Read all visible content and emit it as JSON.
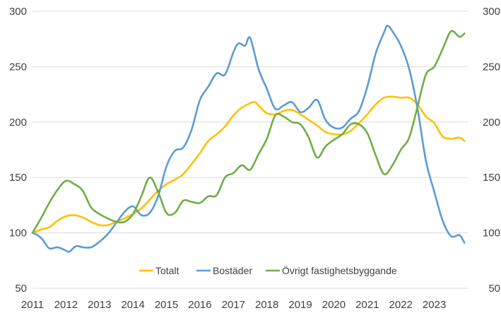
{
  "chart_data": {
    "type": "line",
    "title": "",
    "xlabel": "",
    "ylabel": "",
    "ylim": [
      50,
      300
    ],
    "y_ticks": [
      "300",
      "250",
      "200",
      "150",
      "100",
      "50"
    ],
    "y_ticks_right": [
      "300",
      "250",
      "200",
      "150",
      "100",
      "50"
    ],
    "x_ticks": [
      "2011",
      "2012",
      "2013",
      "2014",
      "2015",
      "2016",
      "2017",
      "2018",
      "2019",
      "2020",
      "2021",
      "2022",
      "2023"
    ],
    "x_range": [
      2011.0,
      2024.0
    ],
    "grid": "horizontal",
    "legend_position": "bottom-inside",
    "series": [
      {
        "name": "Totalt",
        "color": "#FFC000",
        "points": [
          [
            2011.0,
            100
          ],
          [
            2011.25,
            103
          ],
          [
            2011.5,
            105
          ],
          [
            2011.75,
            111
          ],
          [
            2012.0,
            115
          ],
          [
            2012.25,
            116
          ],
          [
            2012.5,
            114
          ],
          [
            2012.75,
            110
          ],
          [
            2013.0,
            107
          ],
          [
            2013.25,
            107
          ],
          [
            2013.5,
            110
          ],
          [
            2013.75,
            113
          ],
          [
            2014.0,
            117
          ],
          [
            2014.25,
            122
          ],
          [
            2014.5,
            130
          ],
          [
            2014.75,
            138
          ],
          [
            2015.0,
            144
          ],
          [
            2015.25,
            148
          ],
          [
            2015.5,
            153
          ],
          [
            2015.75,
            162
          ],
          [
            2016.0,
            172
          ],
          [
            2016.25,
            183
          ],
          [
            2016.5,
            189
          ],
          [
            2016.75,
            196
          ],
          [
            2017.0,
            206
          ],
          [
            2017.25,
            213
          ],
          [
            2017.5,
            217
          ],
          [
            2017.65,
            218
          ],
          [
            2017.75,
            215
          ],
          [
            2018.0,
            208
          ],
          [
            2018.25,
            207
          ],
          [
            2018.5,
            210
          ],
          [
            2018.75,
            211
          ],
          [
            2019.0,
            207
          ],
          [
            2019.25,
            202
          ],
          [
            2019.5,
            197
          ],
          [
            2019.75,
            191
          ],
          [
            2020.0,
            189
          ],
          [
            2020.25,
            189
          ],
          [
            2020.5,
            192
          ],
          [
            2020.75,
            199
          ],
          [
            2021.0,
            207
          ],
          [
            2021.25,
            216
          ],
          [
            2021.5,
            222
          ],
          [
            2021.75,
            223
          ],
          [
            2022.0,
            222
          ],
          [
            2022.25,
            222
          ],
          [
            2022.5,
            216
          ],
          [
            2022.75,
            205
          ],
          [
            2023.0,
            199
          ],
          [
            2023.25,
            187
          ],
          [
            2023.5,
            185
          ],
          [
            2023.75,
            186
          ],
          [
            2023.9,
            183
          ]
        ]
      },
      {
        "name": "Bostäder",
        "color": "#5B9BD5",
        "points": [
          [
            2011.0,
            100
          ],
          [
            2011.15,
            98
          ],
          [
            2011.3,
            94
          ],
          [
            2011.5,
            86
          ],
          [
            2011.75,
            87
          ],
          [
            2012.0,
            84
          ],
          [
            2012.1,
            83
          ],
          [
            2012.3,
            88
          ],
          [
            2012.5,
            87
          ],
          [
            2012.75,
            87
          ],
          [
            2013.0,
            92
          ],
          [
            2013.25,
            99
          ],
          [
            2013.5,
            109
          ],
          [
            2013.75,
            119
          ],
          [
            2014.0,
            124
          ],
          [
            2014.25,
            116
          ],
          [
            2014.5,
            118
          ],
          [
            2014.75,
            133
          ],
          [
            2015.0,
            160
          ],
          [
            2015.25,
            174
          ],
          [
            2015.5,
            177
          ],
          [
            2015.75,
            193
          ],
          [
            2016.0,
            220
          ],
          [
            2016.25,
            232
          ],
          [
            2016.5,
            244
          ],
          [
            2016.75,
            243
          ],
          [
            2017.0,
            263
          ],
          [
            2017.15,
            271
          ],
          [
            2017.35,
            269
          ],
          [
            2017.5,
            276
          ],
          [
            2017.75,
            248
          ],
          [
            2018.0,
            230
          ],
          [
            2018.25,
            212
          ],
          [
            2018.5,
            215
          ],
          [
            2018.75,
            218
          ],
          [
            2019.0,
            209
          ],
          [
            2019.25,
            213
          ],
          [
            2019.5,
            220
          ],
          [
            2019.75,
            202
          ],
          [
            2020.0,
            195
          ],
          [
            2020.25,
            195
          ],
          [
            2020.5,
            203
          ],
          [
            2020.75,
            210
          ],
          [
            2021.0,
            232
          ],
          [
            2021.25,
            262
          ],
          [
            2021.5,
            281
          ],
          [
            2021.6,
            287
          ],
          [
            2021.75,
            282
          ],
          [
            2022.0,
            269
          ],
          [
            2022.25,
            248
          ],
          [
            2022.5,
            212
          ],
          [
            2022.75,
            165
          ],
          [
            2023.0,
            137
          ],
          [
            2023.25,
            111
          ],
          [
            2023.5,
            97
          ],
          [
            2023.75,
            98
          ],
          [
            2023.9,
            91
          ]
        ]
      },
      {
        "name": "Övrigt fastighetsbyggande",
        "color": "#70AD47",
        "points": [
          [
            2011.0,
            100
          ],
          [
            2011.25,
            113
          ],
          [
            2011.5,
            127
          ],
          [
            2011.75,
            139
          ],
          [
            2012.0,
            147
          ],
          [
            2012.25,
            144
          ],
          [
            2012.5,
            138
          ],
          [
            2012.75,
            123
          ],
          [
            2013.0,
            117
          ],
          [
            2013.25,
            113
          ],
          [
            2013.5,
            110
          ],
          [
            2013.75,
            110
          ],
          [
            2014.0,
            117
          ],
          [
            2014.25,
            133
          ],
          [
            2014.5,
            150
          ],
          [
            2014.75,
            137
          ],
          [
            2015.0,
            118
          ],
          [
            2015.25,
            118
          ],
          [
            2015.5,
            129
          ],
          [
            2015.75,
            128
          ],
          [
            2016.0,
            127
          ],
          [
            2016.25,
            133
          ],
          [
            2016.5,
            134
          ],
          [
            2016.75,
            150
          ],
          [
            2017.0,
            154
          ],
          [
            2017.25,
            161
          ],
          [
            2017.5,
            157
          ],
          [
            2017.75,
            171
          ],
          [
            2018.0,
            185
          ],
          [
            2018.25,
            206
          ],
          [
            2018.5,
            205
          ],
          [
            2018.75,
            200
          ],
          [
            2019.0,
            198
          ],
          [
            2019.25,
            186
          ],
          [
            2019.5,
            168
          ],
          [
            2019.75,
            178
          ],
          [
            2020.0,
            184
          ],
          [
            2020.25,
            189
          ],
          [
            2020.5,
            198
          ],
          [
            2020.75,
            198
          ],
          [
            2021.0,
            190
          ],
          [
            2021.25,
            170
          ],
          [
            2021.5,
            153
          ],
          [
            2021.75,
            161
          ],
          [
            2022.0,
            175
          ],
          [
            2022.25,
            186
          ],
          [
            2022.5,
            214
          ],
          [
            2022.75,
            243
          ],
          [
            2023.0,
            250
          ],
          [
            2023.25,
            266
          ],
          [
            2023.5,
            282
          ],
          [
            2023.75,
            277
          ],
          [
            2023.9,
            280
          ]
        ]
      }
    ]
  }
}
